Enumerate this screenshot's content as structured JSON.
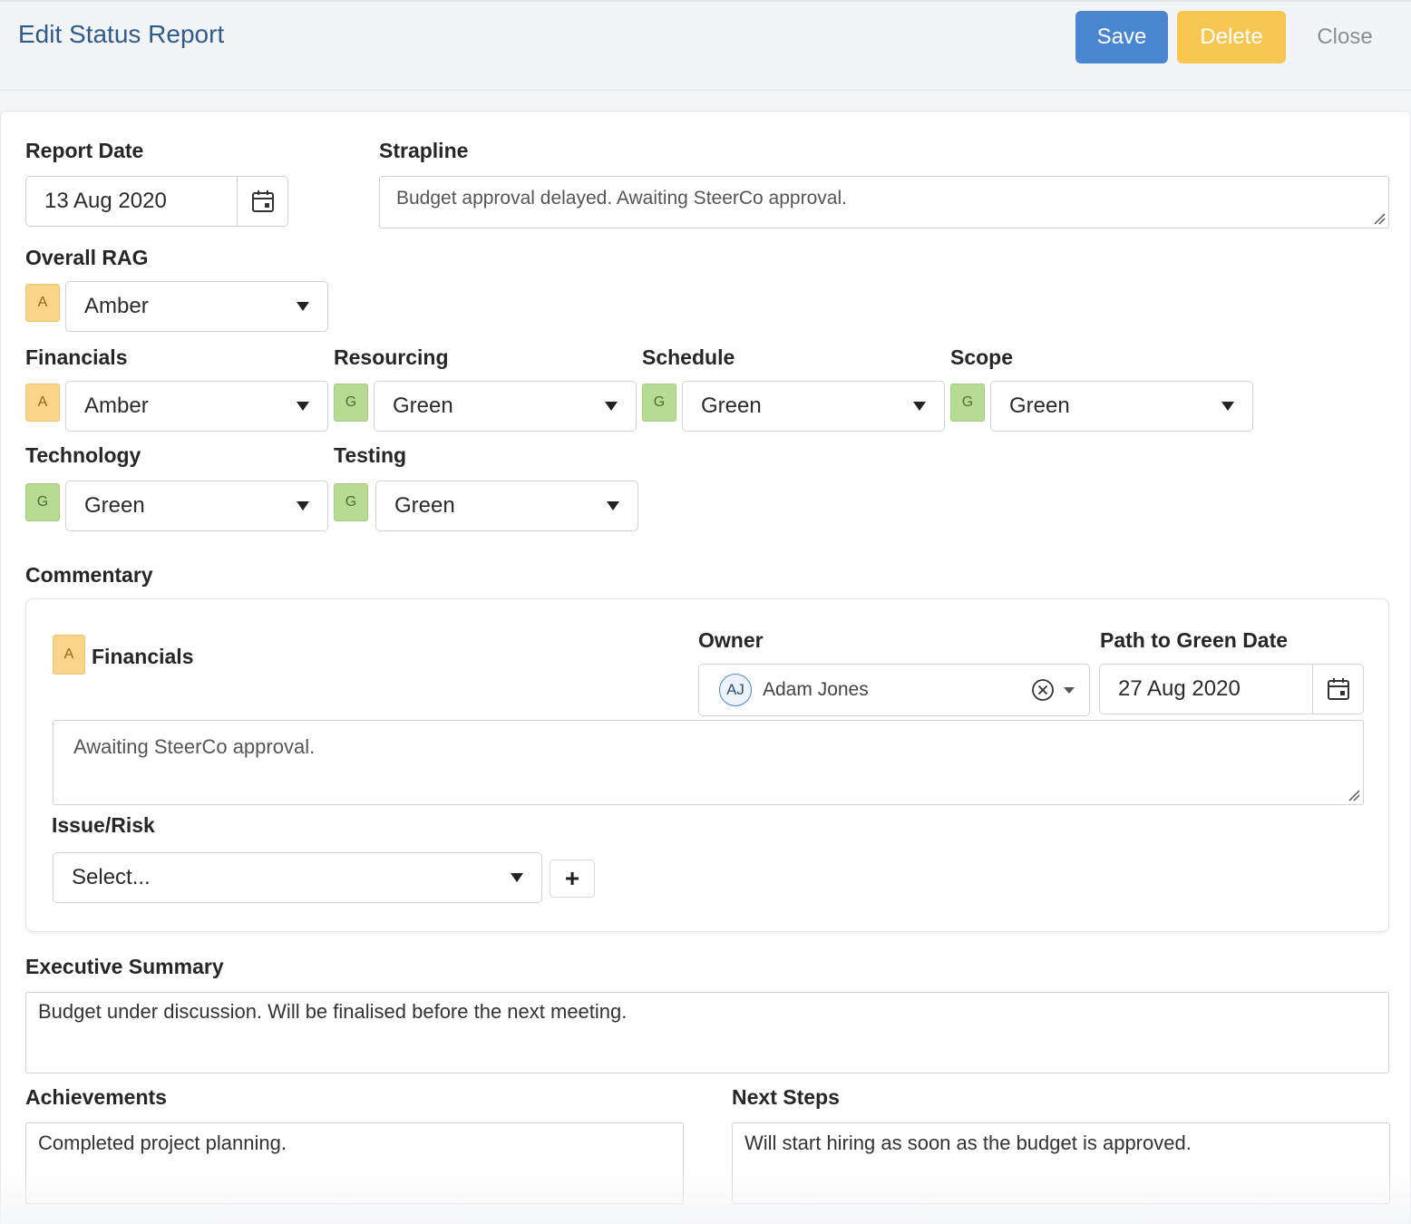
{
  "header": {
    "title": "Edit Status Report",
    "save_label": "Save",
    "delete_label": "Delete",
    "close_label": "Close"
  },
  "report_date": {
    "label": "Report Date",
    "value": "13 Aug 2020"
  },
  "strapline": {
    "label": "Strapline",
    "value": "Budget approval delayed. Awaiting SteerCo approval."
  },
  "overall_rag": {
    "label": "Overall RAG",
    "chip": "A",
    "value": "Amber"
  },
  "rag_fields": {
    "financials": {
      "label": "Financials",
      "chip": "A",
      "value": "Amber"
    },
    "resourcing": {
      "label": "Resourcing",
      "chip": "G",
      "value": "Green"
    },
    "schedule": {
      "label": "Schedule",
      "chip": "G",
      "value": "Green"
    },
    "scope": {
      "label": "Scope",
      "chip": "G",
      "value": "Green"
    },
    "technology": {
      "label": "Technology",
      "chip": "G",
      "value": "Green"
    },
    "testing": {
      "label": "Testing",
      "chip": "G",
      "value": "Green"
    }
  },
  "commentary": {
    "label": "Commentary",
    "item": {
      "chip": "A",
      "title": "Financials",
      "owner_label": "Owner",
      "owner_initials": "AJ",
      "owner_name": "Adam Jones",
      "path_label": "Path to Green Date",
      "path_date": "27 Aug 2020",
      "text": "Awaiting SteerCo approval.",
      "issue_label": "Issue/Risk",
      "issue_placeholder": "Select...",
      "add_label": "+"
    }
  },
  "executive_summary": {
    "label": "Executive Summary",
    "value": "Budget under discussion. Will be finalised before the next meeting."
  },
  "achievements": {
    "label": "Achievements",
    "value": "Completed project planning."
  },
  "next_steps": {
    "label": "Next Steps",
    "value": "Will start hiring as soon as the budget is approved."
  },
  "colors": {
    "primary": "#4a86cf",
    "warning": "#f6c651",
    "amber": "#f9d48a",
    "green": "#b8db93"
  },
  "icons": {
    "calendar": "calendar-icon",
    "clear": "clear-circle-icon",
    "caret": "caret-down-icon"
  }
}
